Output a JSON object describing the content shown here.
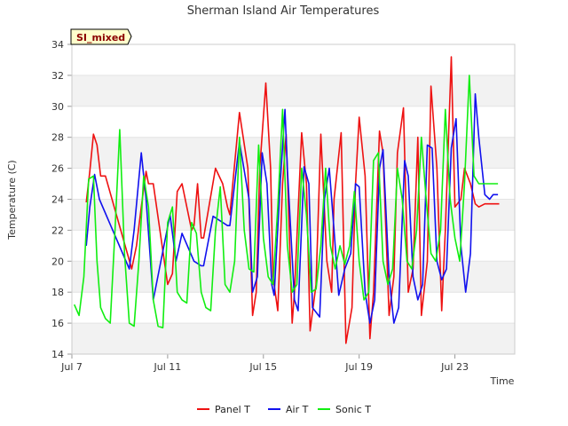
{
  "chart_data": {
    "type": "line",
    "title": "Sherman Island Air Temperatures",
    "badge": "SI_mixed",
    "xlabel": "Time",
    "ylabel": "Temperature (C)",
    "x_unit": "day of July",
    "xlim": [
      7,
      25.5
    ],
    "ylim": [
      14,
      34
    ],
    "yticks": [
      14,
      16,
      18,
      20,
      22,
      24,
      26,
      28,
      30,
      32,
      34
    ],
    "xticks": [
      {
        "value": 7,
        "label": "Jul 7"
      },
      {
        "value": 11,
        "label": "Jul 11"
      },
      {
        "value": 15,
        "label": "Jul 15"
      },
      {
        "value": 19,
        "label": "Jul 19"
      },
      {
        "value": 23,
        "label": "Jul 23"
      }
    ],
    "grid": "horizontal bands",
    "legend_position": "bottom",
    "series": [
      {
        "name": "Panel T",
        "color": "#ee1111",
        "x": [
          7.6,
          7.75,
          7.9,
          8.05,
          8.2,
          8.4,
          9.5,
          9.7,
          9.9,
          10.1,
          10.2,
          10.4,
          11.0,
          11.2,
          11.4,
          11.6,
          12.0,
          12.1,
          12.25,
          12.4,
          12.5,
          13.0,
          13.3,
          13.5,
          13.6,
          14.0,
          14.35,
          14.55,
          14.7,
          14.85,
          15.1,
          15.3,
          15.4,
          15.6,
          15.8,
          15.95,
          16.2,
          16.3,
          16.6,
          16.8,
          16.95,
          17.2,
          17.4,
          17.65,
          17.85,
          17.95,
          18.25,
          18.45,
          18.7,
          18.85,
          19.0,
          19.25,
          19.45,
          19.6,
          19.85,
          20.0,
          20.25,
          20.45,
          20.6,
          20.85,
          21.05,
          21.25,
          21.45,
          21.6,
          21.85,
          22.0,
          22.25,
          22.45,
          22.6,
          22.85,
          23.0,
          23.25,
          23.4,
          23.65,
          23.85,
          24.0,
          24.25,
          24.45,
          24.6,
          24.75,
          24.85
        ],
        "y": [
          23.8,
          25.8,
          28.2,
          27.5,
          25.5,
          25.5,
          19.5,
          21.0,
          23.5,
          25.8,
          25.0,
          25.0,
          18.5,
          19.2,
          24.5,
          25.0,
          22.0,
          22.3,
          25.0,
          21.5,
          21.5,
          26.0,
          25.0,
          23.5,
          23.0,
          29.6,
          26.0,
          16.5,
          18.0,
          26.0,
          31.5,
          26.0,
          19.0,
          16.8,
          25.0,
          28.2,
          16.0,
          18.0,
          28.3,
          25.0,
          15.5,
          18.5,
          28.2,
          20.0,
          18.0,
          24.0,
          28.3,
          14.7,
          17.0,
          25.0,
          29.3,
          25.5,
          15.0,
          18.0,
          28.4,
          27.0,
          16.5,
          19.0,
          27.0,
          29.9,
          18.0,
          19.5,
          28.0,
          16.5,
          20.0,
          31.3,
          26.0,
          16.8,
          22.0,
          33.2,
          23.5,
          24.0,
          26.0,
          25.0,
          23.7,
          23.5,
          23.7,
          23.7,
          23.7,
          23.7,
          23.7
        ]
      },
      {
        "name": "Air T",
        "color": "#1111ee",
        "x": [
          7.6,
          7.75,
          7.95,
          8.15,
          9.4,
          9.6,
          9.9,
          10.1,
          10.4,
          11.1,
          11.35,
          11.6,
          12.1,
          12.4,
          12.5,
          12.9,
          13.5,
          13.6,
          14.0,
          14.4,
          14.55,
          14.75,
          14.95,
          15.15,
          15.35,
          15.45,
          15.7,
          15.9,
          16.0,
          16.3,
          16.45,
          16.7,
          16.9,
          17.05,
          17.35,
          17.55,
          17.75,
          17.95,
          18.15,
          18.4,
          18.65,
          18.85,
          19.0,
          19.25,
          19.45,
          19.65,
          19.85,
          20.0,
          20.25,
          20.45,
          20.65,
          20.9,
          21.05,
          21.25,
          21.45,
          21.65,
          21.85,
          22.05,
          22.25,
          22.45,
          22.65,
          22.85,
          23.05,
          23.25,
          23.45,
          23.65,
          23.85,
          24.0,
          24.25,
          24.45,
          24.6,
          24.8
        ],
        "y": [
          21.0,
          23.5,
          25.6,
          24.0,
          19.5,
          22.0,
          27.0,
          24.0,
          17.5,
          23.0,
          20.0,
          21.8,
          20.0,
          19.7,
          19.7,
          22.9,
          22.3,
          22.3,
          27.7,
          24.0,
          18.0,
          19.0,
          27.0,
          25.0,
          18.5,
          17.8,
          25.0,
          29.8,
          26.0,
          17.5,
          16.8,
          26.1,
          25.0,
          17.0,
          16.4,
          24.0,
          26.0,
          22.0,
          17.8,
          19.5,
          20.5,
          25.0,
          24.8,
          18.0,
          16.0,
          17.5,
          26.0,
          27.2,
          19.0,
          16.0,
          17.0,
          26.5,
          25.5,
          19.0,
          17.5,
          18.5,
          27.5,
          27.3,
          20.0,
          18.8,
          19.5,
          27.3,
          29.2,
          21.0,
          18.0,
          20.5,
          30.8,
          28.0,
          24.3,
          24.0,
          24.3,
          24.3
        ]
      },
      {
        "name": "Sonic T",
        "color": "#11ee11",
        "x": [
          7.1,
          7.3,
          7.5,
          7.7,
          7.9,
          8.05,
          8.2,
          8.4,
          8.6,
          8.8,
          9.0,
          9.2,
          9.4,
          9.6,
          9.8,
          10.0,
          10.2,
          10.4,
          10.6,
          10.8,
          11.0,
          11.2,
          11.4,
          11.6,
          11.8,
          12.0,
          12.2,
          12.4,
          12.6,
          12.8,
          13.0,
          13.2,
          13.4,
          13.6,
          13.8,
          14.0,
          14.2,
          14.4,
          14.6,
          14.8,
          15.0,
          15.2,
          15.4,
          15.6,
          15.8,
          16.0,
          16.2,
          16.4,
          16.6,
          16.8,
          17.0,
          17.2,
          17.4,
          17.6,
          17.8,
          18.0,
          18.2,
          18.4,
          18.6,
          18.8,
          19.0,
          19.2,
          19.4,
          19.6,
          19.8,
          20.0,
          20.2,
          20.4,
          20.6,
          20.8,
          21.0,
          21.2,
          21.4,
          21.6,
          21.8,
          22.0,
          22.2,
          22.4,
          22.6,
          22.8,
          23.0,
          23.2,
          23.4,
          23.6,
          23.8,
          24.0,
          24.2,
          24.4,
          24.6,
          24.8
        ],
        "y": [
          17.2,
          16.5,
          19.0,
          25.3,
          25.5,
          20.0,
          17.0,
          16.3,
          16.0,
          22.0,
          28.5,
          20.5,
          16.0,
          15.8,
          20.0,
          25.5,
          23.5,
          17.5,
          15.8,
          15.7,
          22.5,
          23.5,
          18.0,
          17.5,
          17.3,
          22.5,
          21.8,
          18.0,
          17.0,
          16.8,
          22.0,
          24.8,
          18.5,
          18.0,
          20.0,
          28.0,
          22.0,
          19.5,
          19.3,
          27.5,
          21.5,
          19.0,
          18.5,
          23.5,
          29.8,
          21.0,
          18.0,
          18.5,
          26.0,
          23.0,
          18.0,
          18.2,
          21.0,
          26.0,
          21.0,
          19.5,
          21.0,
          19.8,
          21.0,
          24.5,
          20.0,
          17.5,
          18.0,
          26.5,
          27.0,
          20.0,
          18.5,
          19.5,
          26.0,
          24.0,
          20.0,
          19.5,
          22.0,
          28.0,
          24.0,
          20.5,
          20.0,
          22.0,
          29.8,
          24.0,
          21.5,
          20.0,
          25.0,
          32.0,
          25.5,
          25.0,
          25.0,
          25.0,
          25.0,
          25.0
        ]
      }
    ]
  }
}
